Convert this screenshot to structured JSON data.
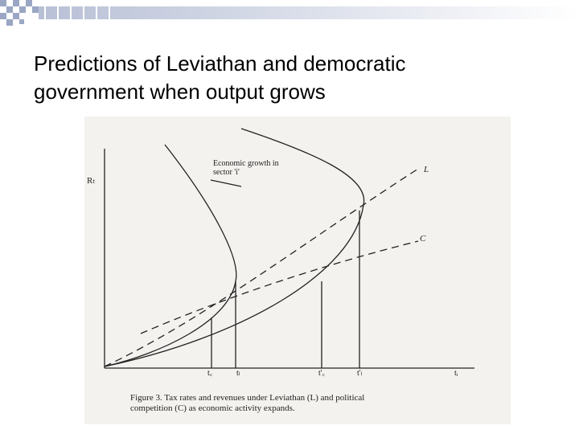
{
  "slide": {
    "title_lines": [
      "Predictions of Leviathan and democratic",
      "government when output grows"
    ],
    "figure": {
      "y_axis_label": "Rₜ",
      "annotation_lines": [
        "Economic growth in",
        "sector 'i'"
      ],
      "curve_labels": [
        "L",
        "C"
      ],
      "x_axis_labels": [
        "t꜀",
        "tₗ",
        "t'꜀",
        "t'ₗ",
        "tᵢ"
      ],
      "caption_lines": [
        "Figure 3. Tax rates and revenues under Leviathan (L) and political",
        "competition (C) as economic activity expands."
      ]
    }
  }
}
